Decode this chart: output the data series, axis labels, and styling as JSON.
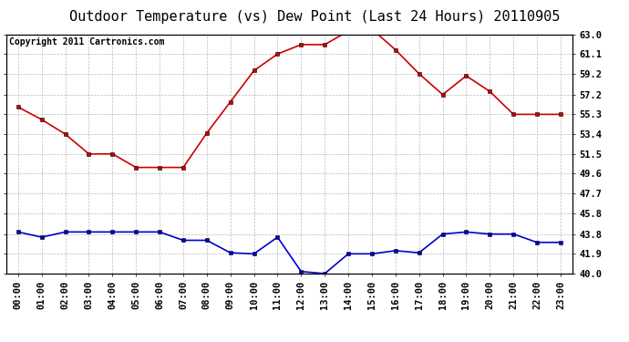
{
  "title": "Outdoor Temperature (vs) Dew Point (Last 24 Hours) 20110905",
  "copyright": "Copyright 2011 Cartronics.com",
  "hours": [
    "00:00",
    "01:00",
    "02:00",
    "03:00",
    "04:00",
    "05:00",
    "06:00",
    "07:00",
    "08:00",
    "09:00",
    "10:00",
    "11:00",
    "12:00",
    "13:00",
    "14:00",
    "15:00",
    "16:00",
    "17:00",
    "18:00",
    "19:00",
    "20:00",
    "21:00",
    "22:00",
    "23:00"
  ],
  "temp": [
    56.0,
    54.8,
    53.4,
    51.5,
    51.5,
    50.2,
    50.2,
    50.2,
    53.5,
    56.5,
    59.5,
    61.1,
    62.0,
    62.0,
    63.3,
    63.5,
    61.5,
    59.2,
    57.2,
    59.0,
    57.5,
    55.3,
    55.3,
    55.3
  ],
  "dew": [
    44.0,
    43.5,
    44.0,
    44.0,
    44.0,
    44.0,
    44.0,
    43.2,
    43.2,
    42.0,
    41.9,
    43.5,
    40.2,
    40.0,
    41.9,
    41.9,
    42.2,
    42.0,
    43.8,
    44.0,
    43.8,
    43.8,
    43.0,
    43.0
  ],
  "temp_color": "#cc0000",
  "dew_color": "#0000cc",
  "bg_color": "#ffffff",
  "plot_bg_color": "#ffffff",
  "grid_color": "#aaaaaa",
  "ylim": [
    40.0,
    63.0
  ],
  "yticks": [
    40.0,
    41.9,
    43.8,
    45.8,
    47.7,
    49.6,
    51.5,
    53.4,
    55.3,
    57.2,
    59.2,
    61.1,
    63.0
  ],
  "title_fontsize": 11,
  "copyright_fontsize": 7,
  "tick_fontsize": 7.5
}
